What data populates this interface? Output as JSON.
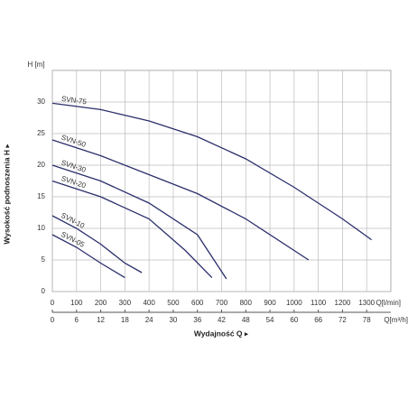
{
  "chart_data": {
    "type": "line",
    "y_axis_label": "H [m]",
    "x_axis_label": "Q[l/min]",
    "x2_axis_label": "Q[m³/h]",
    "y_title": "Wysokość podnoszenia H ▸",
    "x_title": "Wydajność Q ▸",
    "xlim": [
      0,
      1400
    ],
    "xticks": [
      0,
      100,
      200,
      300,
      400,
      500,
      600,
      700,
      800,
      900,
      1000,
      1100,
      1200,
      1300
    ],
    "x2lim": [
      0,
      84
    ],
    "x2ticks": [
      0,
      6,
      12,
      18,
      24,
      30,
      36,
      42,
      48,
      54,
      60,
      66,
      72,
      78
    ],
    "ylim": [
      0,
      35
    ],
    "yticks": [
      0,
      5,
      10,
      15,
      20,
      25,
      30
    ],
    "grid": true,
    "color": "#2b2f6b",
    "series": [
      {
        "name": "SVN-75",
        "x": [
          0,
          200,
          400,
          600,
          800,
          1000,
          1200,
          1320
        ],
        "values": [
          29.8,
          28.8,
          27,
          24.5,
          21,
          16.5,
          11.5,
          8.2
        ]
      },
      {
        "name": "SVN-50",
        "x": [
          0,
          200,
          400,
          600,
          800,
          1060
        ],
        "values": [
          24,
          21.5,
          18.5,
          15.5,
          11.5,
          5
        ]
      },
      {
        "name": "SVN-30",
        "x": [
          0,
          200,
          400,
          600,
          720
        ],
        "values": [
          20,
          17.5,
          14,
          9,
          2
        ]
      },
      {
        "name": "SVN-20",
        "x": [
          0,
          200,
          400,
          550,
          660
        ],
        "values": [
          17.5,
          15,
          11.5,
          6.5,
          2.2
        ]
      },
      {
        "name": "SVN-10",
        "x": [
          0,
          100,
          200,
          300,
          370
        ],
        "values": [
          12,
          10,
          7.5,
          4.5,
          3
        ]
      },
      {
        "name": "SVN-05",
        "x": [
          0,
          100,
          200,
          300
        ],
        "values": [
          9,
          7,
          4.5,
          2.2
        ]
      }
    ]
  }
}
